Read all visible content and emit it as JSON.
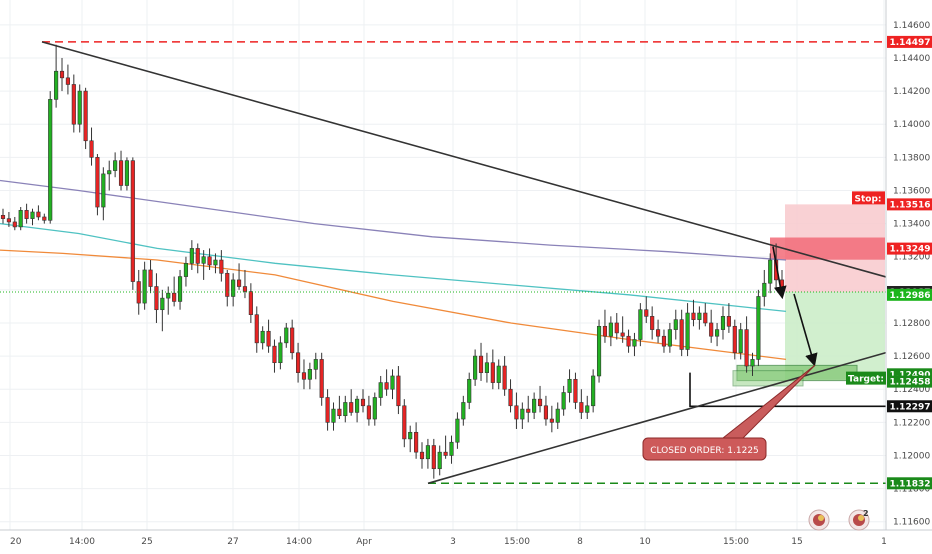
{
  "chart_data": {
    "type": "candlestick",
    "y_axis": {
      "range": [
        1.1155,
        1.1475
      ],
      "ticks": [
        "1.14600",
        "1.14400",
        "1.14200",
        "1.14000",
        "1.13800",
        "1.13600",
        "1.13400",
        "1.13200",
        "1.13000",
        "1.12800",
        "1.12600",
        "1.12400",
        "1.12200",
        "1.12000",
        "1.11800",
        "1.11600"
      ]
    },
    "x_axis": {
      "labels": [
        "20",
        "14:00",
        "25",
        "27",
        "14:00",
        "Apr",
        "3",
        "15:00",
        "8",
        "10",
        "15:00",
        "15",
        "1"
      ]
    },
    "price_levels": [
      {
        "name": "resistance-high",
        "value": 1.14497,
        "label": "1.14497",
        "color": "#ee2222",
        "style": "dashed"
      },
      {
        "name": "stop",
        "value": 1.13516,
        "label": "1.13516",
        "color": "#ee2222",
        "style": "tag"
      },
      {
        "name": "entry",
        "value": 1.13249,
        "label": "1.13249",
        "color": "#ee2222",
        "style": "tag"
      },
      {
        "name": "current-price",
        "value": 1.12987,
        "label": "1.12987",
        "color": "#222222",
        "style": "dotted"
      },
      {
        "name": "ma-value",
        "value": 1.12986,
        "label": "1.12986",
        "color": "#1db51d",
        "style": "tag"
      },
      {
        "name": "close-zone",
        "value": 1.1249,
        "label": "1.12490",
        "color": "#1a8a1a",
        "style": "tag"
      },
      {
        "name": "target",
        "value": 1.12458,
        "label": "1.12458",
        "color": "#1a8a1a",
        "style": "tag"
      },
      {
        "name": "support-mid",
        "value": 1.12297,
        "label": "1.12297",
        "color": "#222222",
        "style": "solid"
      },
      {
        "name": "support-low",
        "value": 1.11832,
        "label": "1.11832",
        "color": "#1a8a1a",
        "style": "dashed"
      }
    ],
    "stop_label": "Stop:",
    "target_label": "Target:",
    "closed_order_label": "CLOSED ORDER: 1.1225",
    "candles": [
      [
        1.1345,
        1.1349,
        1.134,
        1.1343
      ],
      [
        1.1343,
        1.1347,
        1.1338,
        1.1341
      ],
      [
        1.1341,
        1.1344,
        1.1336,
        1.1338
      ],
      [
        1.1338,
        1.135,
        1.1336,
        1.1348
      ],
      [
        1.1348,
        1.1352,
        1.134,
        1.1343
      ],
      [
        1.1343,
        1.1349,
        1.1339,
        1.1347
      ],
      [
        1.1347,
        1.1351,
        1.1342,
        1.1344
      ],
      [
        1.1344,
        1.1346,
        1.134,
        1.1342
      ],
      [
        1.1342,
        1.142,
        1.134,
        1.1415
      ],
      [
        1.1415,
        1.1448,
        1.141,
        1.1432
      ],
      [
        1.1432,
        1.144,
        1.142,
        1.1428
      ],
      [
        1.1428,
        1.1436,
        1.1418,
        1.1424
      ],
      [
        1.1424,
        1.143,
        1.1395,
        1.14
      ],
      [
        1.14,
        1.1424,
        1.1395,
        1.142
      ],
      [
        1.142,
        1.1422,
        1.1385,
        1.139
      ],
      [
        1.139,
        1.1398,
        1.1375,
        1.138
      ],
      [
        1.138,
        1.1382,
        1.1345,
        1.135
      ],
      [
        1.135,
        1.1374,
        1.1342,
        1.137
      ],
      [
        1.137,
        1.1378,
        1.136,
        1.1372
      ],
      [
        1.1372,
        1.1383,
        1.1368,
        1.1378
      ],
      [
        1.1378,
        1.1384,
        1.136,
        1.1363
      ],
      [
        1.1363,
        1.138,
        1.136,
        1.1378
      ],
      [
        1.1378,
        1.138,
        1.13,
        1.1305
      ],
      [
        1.1305,
        1.1312,
        1.1285,
        1.1292
      ],
      [
        1.1292,
        1.1317,
        1.1288,
        1.1312
      ],
      [
        1.1312,
        1.1318,
        1.1298,
        1.1302
      ],
      [
        1.1302,
        1.131,
        1.128,
        1.1288
      ],
      [
        1.1288,
        1.13,
        1.1275,
        1.1295
      ],
      [
        1.1295,
        1.1302,
        1.1285,
        1.1298
      ],
      [
        1.1298,
        1.1308,
        1.129,
        1.1293
      ],
      [
        1.1293,
        1.1312,
        1.1288,
        1.1308
      ],
      [
        1.1308,
        1.132,
        1.1302,
        1.1316
      ],
      [
        1.1316,
        1.133,
        1.1312,
        1.1325
      ],
      [
        1.1325,
        1.1328,
        1.131,
        1.1316
      ],
      [
        1.1316,
        1.1324,
        1.1306,
        1.132
      ],
      [
        1.132,
        1.1325,
        1.1312,
        1.1315
      ],
      [
        1.1315,
        1.1322,
        1.131,
        1.1318
      ],
      [
        1.1318,
        1.1324,
        1.1305,
        1.131
      ],
      [
        1.131,
        1.1312,
        1.129,
        1.1296
      ],
      [
        1.1296,
        1.131,
        1.129,
        1.1306
      ],
      [
        1.1306,
        1.1316,
        1.13,
        1.1302
      ],
      [
        1.1302,
        1.1312,
        1.1295,
        1.1299
      ],
      [
        1.1299,
        1.1304,
        1.128,
        1.1285
      ],
      [
        1.1285,
        1.129,
        1.1262,
        1.1268
      ],
      [
        1.1268,
        1.1278,
        1.1264,
        1.1275
      ],
      [
        1.1275,
        1.1282,
        1.1262,
        1.1266
      ],
      [
        1.1266,
        1.127,
        1.125,
        1.1256
      ],
      [
        1.1256,
        1.1272,
        1.1252,
        1.1268
      ],
      [
        1.1268,
        1.128,
        1.1265,
        1.1277
      ],
      [
        1.1277,
        1.1282,
        1.1258,
        1.1262
      ],
      [
        1.1262,
        1.1268,
        1.1244,
        1.125
      ],
      [
        1.125,
        1.1258,
        1.124,
        1.1246
      ],
      [
        1.1246,
        1.1256,
        1.124,
        1.1252
      ],
      [
        1.1252,
        1.1262,
        1.1246,
        1.1258
      ],
      [
        1.1258,
        1.1262,
        1.123,
        1.1235
      ],
      [
        1.1235,
        1.124,
        1.1215,
        1.122
      ],
      [
        1.122,
        1.1232,
        1.1215,
        1.1228
      ],
      [
        1.1228,
        1.1236,
        1.1222,
        1.1224
      ],
      [
        1.1224,
        1.1236,
        1.122,
        1.1232
      ],
      [
        1.1232,
        1.124,
        1.1224,
        1.1226
      ],
      [
        1.1226,
        1.1236,
        1.122,
        1.1234
      ],
      [
        1.1234,
        1.124,
        1.1226,
        1.123
      ],
      [
        1.123,
        1.1236,
        1.1218,
        1.1222
      ],
      [
        1.1222,
        1.1238,
        1.1218,
        1.1235
      ],
      [
        1.1235,
        1.1248,
        1.123,
        1.1244
      ],
      [
        1.1244,
        1.1252,
        1.1236,
        1.124
      ],
      [
        1.124,
        1.1252,
        1.1234,
        1.1248
      ],
      [
        1.1248,
        1.1254,
        1.1225,
        1.123
      ],
      [
        1.123,
        1.1234,
        1.1205,
        1.121
      ],
      [
        1.121,
        1.1218,
        1.1202,
        1.1214
      ],
      [
        1.1214,
        1.122,
        1.1198,
        1.1202
      ],
      [
        1.1202,
        1.1208,
        1.1192,
        1.1198
      ],
      [
        1.1198,
        1.121,
        1.1192,
        1.1206
      ],
      [
        1.1206,
        1.121,
        1.1186,
        1.1192
      ],
      [
        1.1192,
        1.1206,
        1.1188,
        1.1202
      ],
      [
        1.1202,
        1.1212,
        1.1198,
        1.12
      ],
      [
        1.12,
        1.1212,
        1.1195,
        1.1208
      ],
      [
        1.1208,
        1.1226,
        1.1204,
        1.1222
      ],
      [
        1.1222,
        1.1236,
        1.1218,
        1.1232
      ],
      [
        1.1232,
        1.125,
        1.1228,
        1.1246
      ],
      [
        1.1246,
        1.1264,
        1.1242,
        1.126
      ],
      [
        1.126,
        1.1268,
        1.1245,
        1.125
      ],
      [
        1.125,
        1.1262,
        1.1244,
        1.1256
      ],
      [
        1.1256,
        1.1264,
        1.124,
        1.1244
      ],
      [
        1.1244,
        1.1258,
        1.124,
        1.1254
      ],
      [
        1.1254,
        1.126,
        1.1236,
        1.124
      ],
      [
        1.124,
        1.1246,
        1.1226,
        1.123
      ],
      [
        1.123,
        1.1238,
        1.1216,
        1.1222
      ],
      [
        1.1222,
        1.1232,
        1.1216,
        1.1228
      ],
      [
        1.1228,
        1.1236,
        1.122,
        1.1226
      ],
      [
        1.1226,
        1.1238,
        1.1222,
        1.1234
      ],
      [
        1.1234,
        1.1242,
        1.1226,
        1.123
      ],
      [
        1.123,
        1.1236,
        1.1218,
        1.1222
      ],
      [
        1.1222,
        1.123,
        1.1214,
        1.122
      ],
      [
        1.122,
        1.1232,
        1.1216,
        1.1228
      ],
      [
        1.1228,
        1.1242,
        1.1224,
        1.1238
      ],
      [
        1.1238,
        1.1252,
        1.1232,
        1.1246
      ],
      [
        1.1246,
        1.125,
        1.1228,
        1.1232
      ],
      [
        1.1232,
        1.124,
        1.1222,
        1.1226
      ],
      [
        1.1226,
        1.1236,
        1.1222,
        1.123
      ],
      [
        1.123,
        1.1252,
        1.1226,
        1.1248
      ],
      [
        1.1248,
        1.1282,
        1.1244,
        1.1278
      ],
      [
        1.1278,
        1.1288,
        1.1268,
        1.1272
      ],
      [
        1.1272,
        1.1284,
        1.1266,
        1.128
      ],
      [
        1.128,
        1.1286,
        1.127,
        1.1274
      ],
      [
        1.1274,
        1.1284,
        1.1268,
        1.1272
      ],
      [
        1.1272,
        1.1276,
        1.1262,
        1.1266
      ],
      [
        1.1266,
        1.1274,
        1.126,
        1.127
      ],
      [
        1.127,
        1.1292,
        1.1266,
        1.1288
      ],
      [
        1.1288,
        1.1296,
        1.128,
        1.1284
      ],
      [
        1.1284,
        1.129,
        1.127,
        1.1276
      ],
      [
        1.1276,
        1.1282,
        1.1268,
        1.1272
      ],
      [
        1.1272,
        1.1276,
        1.1262,
        1.1266
      ],
      [
        1.1266,
        1.128,
        1.1262,
        1.1276
      ],
      [
        1.1276,
        1.1288,
        1.127,
        1.1282
      ],
      [
        1.1282,
        1.1288,
        1.126,
        1.1264
      ],
      [
        1.1264,
        1.1292,
        1.126,
        1.1286
      ],
      [
        1.1286,
        1.1294,
        1.1278,
        1.1282
      ],
      [
        1.1282,
        1.129,
        1.1276,
        1.1286
      ],
      [
        1.1286,
        1.1292,
        1.1278,
        1.128
      ],
      [
        1.128,
        1.1288,
        1.1268,
        1.1272
      ],
      [
        1.1272,
        1.128,
        1.1266,
        1.1276
      ],
      [
        1.1276,
        1.129,
        1.127,
        1.1284
      ],
      [
        1.1284,
        1.1292,
        1.1274,
        1.1278
      ],
      [
        1.1278,
        1.1282,
        1.1258,
        1.1262
      ],
      [
        1.1262,
        1.128,
        1.1258,
        1.1276
      ],
      [
        1.1276,
        1.1284,
        1.125,
        1.1254
      ],
      [
        1.1254,
        1.1262,
        1.1248,
        1.1258
      ],
      [
        1.1258,
        1.13,
        1.1254,
        1.1296
      ],
      [
        1.1296,
        1.1312,
        1.129,
        1.1304
      ],
      [
        1.1304,
        1.1322,
        1.1298,
        1.1318
      ],
      [
        1.1318,
        1.1328,
        1.13,
        1.1306
      ],
      [
        1.1306,
        1.1312,
        1.1296,
        1.1299
      ]
    ],
    "moving_averages": [
      {
        "name": "ma-purple",
        "color": "#8a82b8",
        "points": [
          [
            0,
            1.1366
          ],
          [
            0.1,
            1.136
          ],
          [
            0.25,
            1.135
          ],
          [
            0.4,
            1.134
          ],
          [
            0.55,
            1.1332
          ],
          [
            0.7,
            1.1327
          ],
          [
            0.85,
            1.1323
          ],
          [
            1.0,
            1.1318
          ]
        ]
      },
      {
        "name": "ma-teal",
        "color": "#4fc2c2",
        "points": [
          [
            0,
            1.134
          ],
          [
            0.1,
            1.1334
          ],
          [
            0.2,
            1.1325
          ],
          [
            0.35,
            1.1316
          ],
          [
            0.5,
            1.1309
          ],
          [
            0.65,
            1.1303
          ],
          [
            0.8,
            1.1297
          ],
          [
            1.0,
            1.1287
          ]
        ]
      },
      {
        "name": "ma-orange",
        "color": "#f08a3a",
        "points": [
          [
            0,
            1.1324
          ],
          [
            0.08,
            1.1322
          ],
          [
            0.2,
            1.1318
          ],
          [
            0.35,
            1.1309
          ],
          [
            0.5,
            1.1293
          ],
          [
            0.65,
            1.128
          ],
          [
            0.8,
            1.127
          ],
          [
            0.9,
            1.1264
          ],
          [
            1.0,
            1.1258
          ]
        ]
      }
    ]
  }
}
